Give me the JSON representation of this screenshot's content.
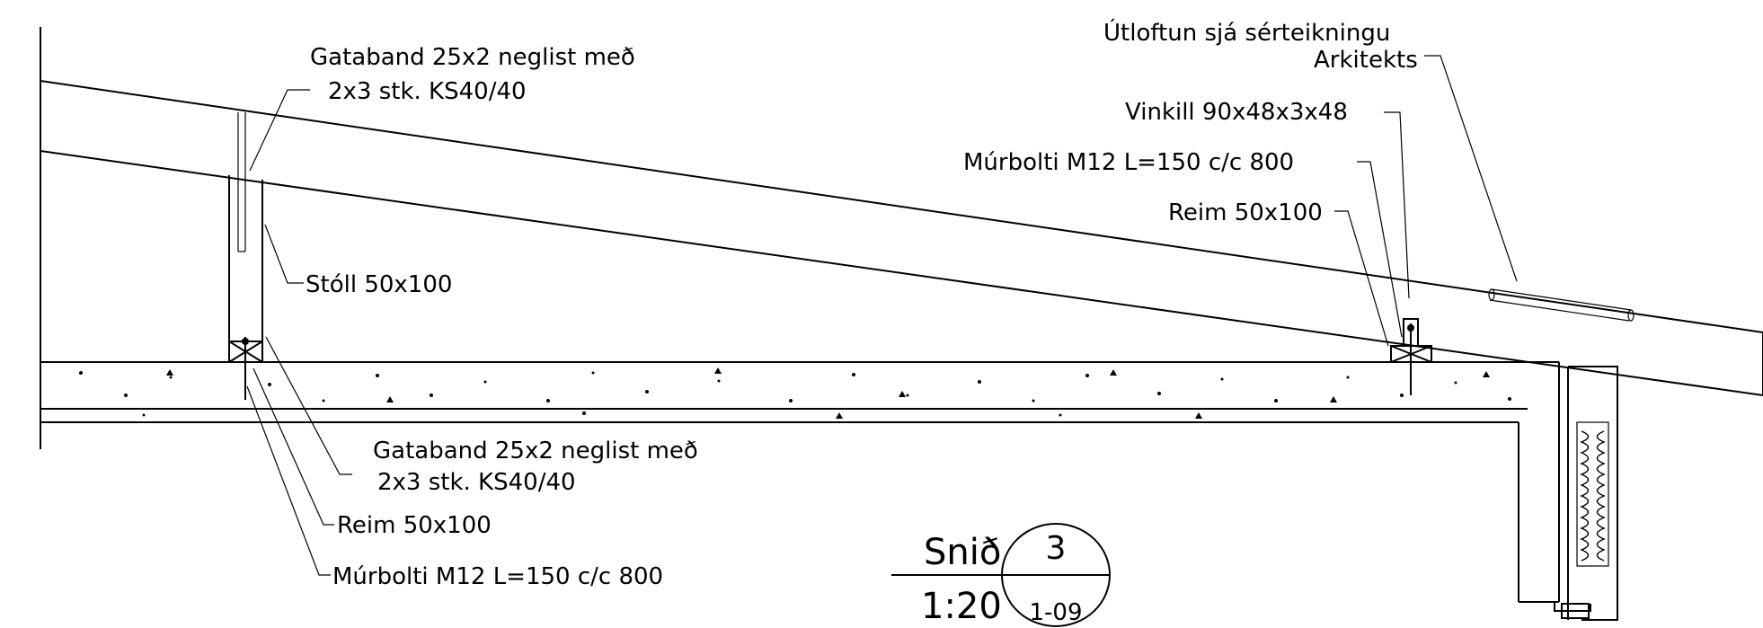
{
  "labels": {
    "gataband_top_line1": "Gataband 25x2 neglist með",
    "gataband_top_line2": "2x3 stk. KS40/40",
    "stoll": "Stóll 50x100",
    "gataband_bottom_line1": "Gataband 25x2 neglist með",
    "gataband_bottom_line2": "2x3 stk. KS40/40",
    "reim_left": "Reim 50x100",
    "murbolti_left": "Múrbolti M12 L=150 c/c 800",
    "utloftun_line1": "Útloftun sjá sérteikningu",
    "utloftun_line2": "Arkitekts",
    "vinkill": "Vinkill 90x48x3x48",
    "murbolti_right": "Múrbolti M12 L=150 c/c 800",
    "reim_right": "Reim 50x100"
  },
  "title_block": {
    "section_label": "Snið",
    "scale": "1:20",
    "section_number": "3",
    "sheet_ref": "1-09"
  }
}
